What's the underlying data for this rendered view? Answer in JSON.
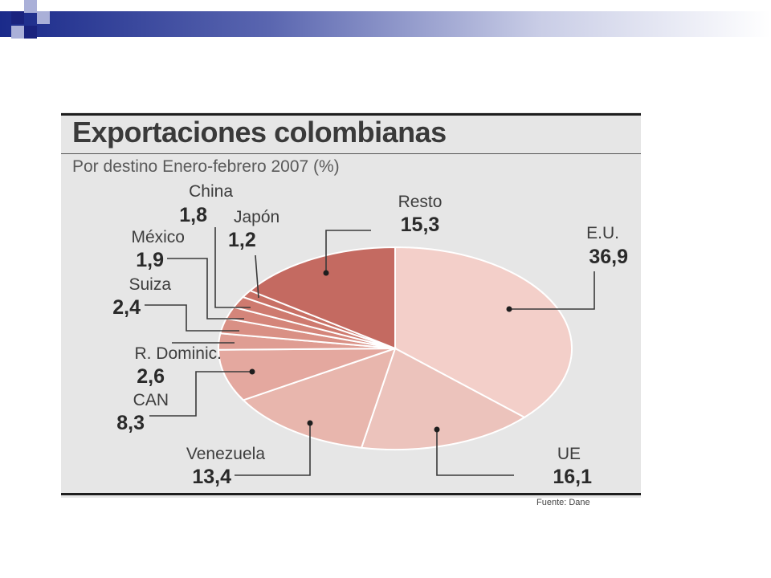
{
  "chart_data": {
    "type": "pie",
    "title": "Exportaciones colombianas",
    "subtitle": "Por destino Enero-febrero 2007 (%)",
    "source": "Fuente: Dane",
    "slices": [
      {
        "label": "E.U.",
        "value": 36.9,
        "value_text": "36,9",
        "color": "#f3cfc9"
      },
      {
        "label": "UE",
        "value": 16.1,
        "value_text": "16,1",
        "color": "#ecc3bc"
      },
      {
        "label": "Venezuela",
        "value": 13.4,
        "value_text": "13,4",
        "color": "#e8b6ad"
      },
      {
        "label": "CAN",
        "value": 8.3,
        "value_text": "8,3",
        "color": "#e4a89f"
      },
      {
        "label": "R. Dominic.",
        "value": 2.6,
        "value_text": "2,6",
        "color": "#df9d93"
      },
      {
        "label": "Suiza",
        "value": 2.4,
        "value_text": "2,4",
        "color": "#d99085"
      },
      {
        "label": "México",
        "value": 1.9,
        "value_text": "1,9",
        "color": "#d4857a"
      },
      {
        "label": "China",
        "value": 1.8,
        "value_text": "1,8",
        "color": "#ce7a6f"
      },
      {
        "label": "Japón",
        "value": 1.2,
        "value_text": "1,2",
        "color": "#c87065"
      },
      {
        "label": "Resto",
        "value": 15.3,
        "value_text": "15,3",
        "color": "#c46a61"
      }
    ]
  }
}
